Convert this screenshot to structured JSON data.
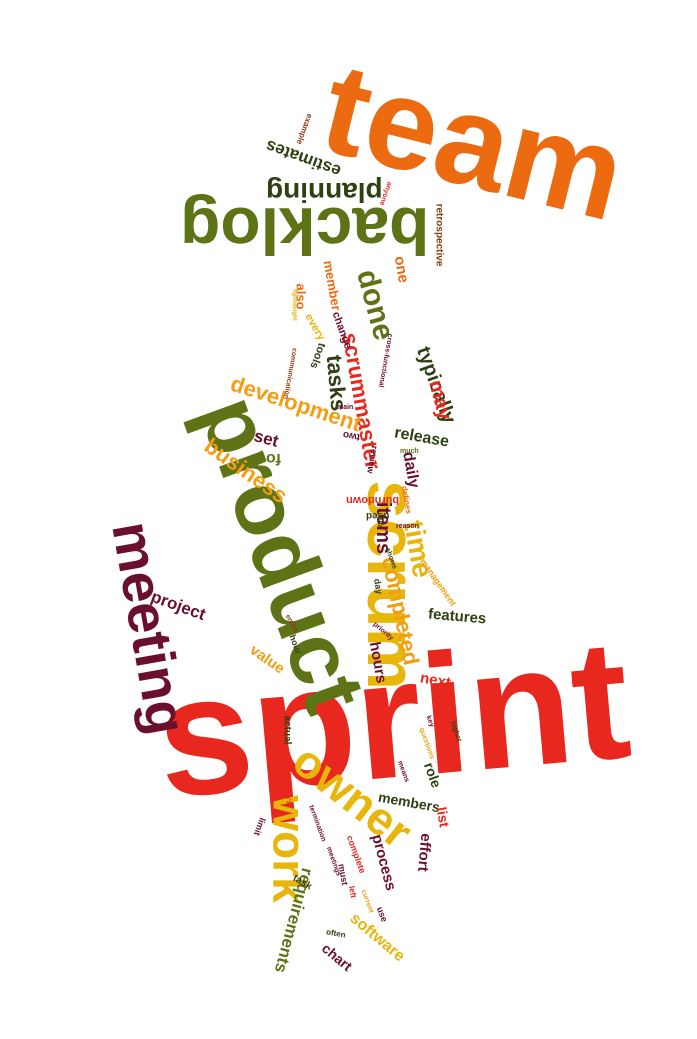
{
  "palette": {
    "red": "#e8281e",
    "orange": "#ec6a10",
    "amber": "#f29d12",
    "yellow": "#e8b50b",
    "olive": "#5e7216",
    "maroon": "#6a0f2d",
    "darkgreen": "#2f4012",
    "brown": "#8a3a10"
  },
  "words": {
    "sprint": "sprint",
    "team": "team",
    "product": "product",
    "scrum": "scrum",
    "backlog": "backlog",
    "meeting": "meeting",
    "owner": "owner",
    "work": "work",
    "planning": "planning",
    "scrummaster": "scrummaster",
    "development": "development",
    "done": "done",
    "business": "business",
    "tasks": "tasks",
    "items": "items",
    "time": "time",
    "completed": "completed",
    "estimates": "estimates",
    "typically": "typically",
    "may": "may",
    "release": "release",
    "daily": "daily",
    "set": "set",
    "four": "four",
    "project": "project",
    "features": "features",
    "value": "value",
    "hours": "hours",
    "next": "next",
    "requirements": "requirements",
    "software": "software",
    "process": "process",
    "effort": "effort",
    "members": "members",
    "role": "role",
    "list": "list",
    "chart": "chart",
    "one": "one",
    "member": "member",
    "also": "also",
    "every": "every",
    "change": "change",
    "tools": "tools",
    "two": "two",
    "review": "review",
    "burndown": "burndown",
    "used": "used",
    "management": "management",
    "day": "day",
    "hour": "hour",
    "actual": "actual",
    "task": "task",
    "limit": "limit",
    "complete": "complete",
    "must": "must",
    "use": "use",
    "left": "left",
    "often": "often",
    "retrospective": "retrospective",
    "example": "example",
    "anyone": "anyone",
    "cross_functional": "cross-functional",
    "communication": "communication",
    "main": "main",
    "much": "much",
    "defines": "defines",
    "reason": "reason",
    "shows": "shows",
    "entire": "entire",
    "priority": "priority",
    "key": "key",
    "higher": "higher",
    "questions": "questions",
    "teams": "team's",
    "means": "means",
    "termination": "termination",
    "meetings": "meetings",
    "current": "current",
    "go": "go",
    "lightweight": "lightweight"
  }
}
